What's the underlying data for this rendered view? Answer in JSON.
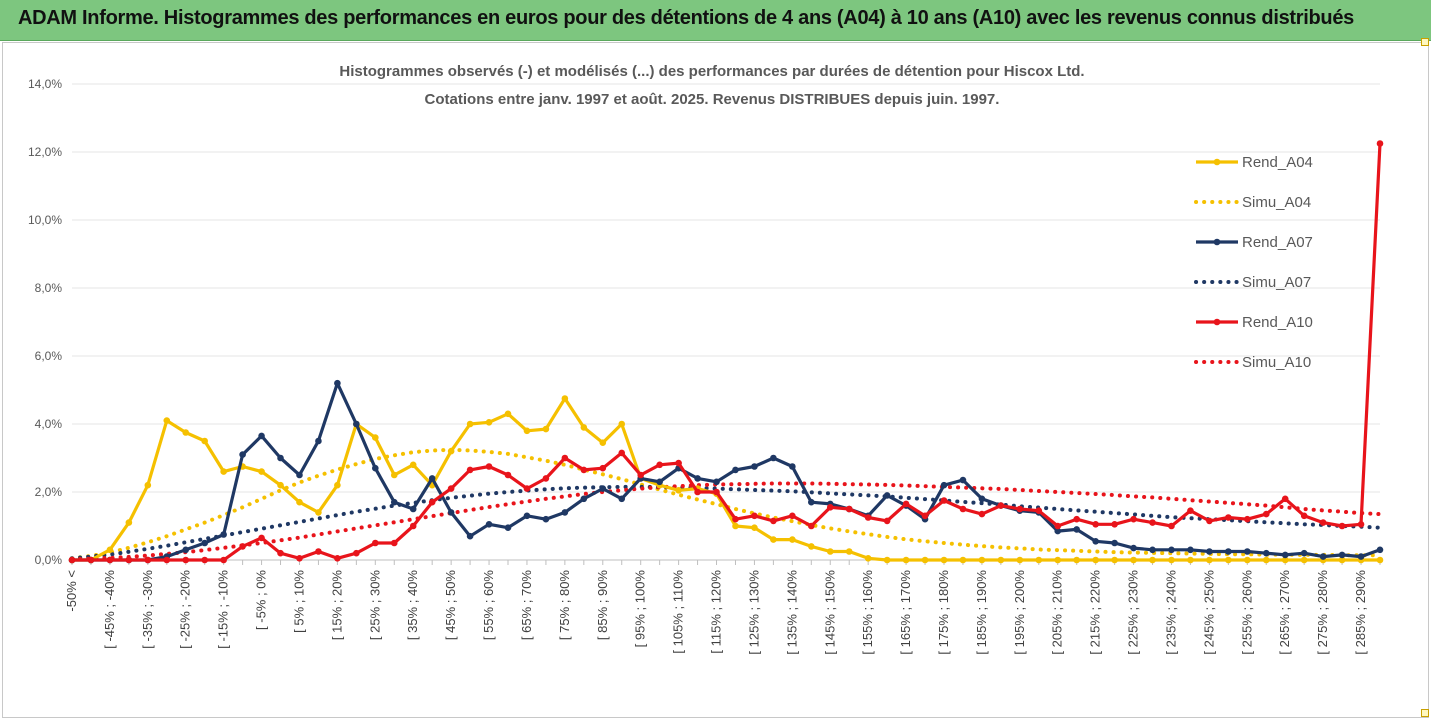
{
  "header": {
    "title": "ADAM Informe. Histogrammes des performances en euros pour des détentions de 4 ans (A04) à 10 ans (A10) avec les revenus connus distribués"
  },
  "colors": {
    "banner": "#7dc67f",
    "yellow": "#f5c000",
    "navy": "#1f3864",
    "red": "#e8141b"
  },
  "chart_data": {
    "type": "line",
    "title": "Histogrammes observés (-) et modélisés (...) des performances par durées de détention pour Hiscox Ltd.",
    "subtitle": "Cotations entre janv. 1997 et août. 2025. Revenus DISTRIBUES depuis juin. 1997.",
    "ylim": [
      0,
      14
    ],
    "yticks": [
      "0,0%",
      "2,0%",
      "4,0%",
      "6,0%",
      "8,0%",
      "10,0%",
      "12,0%",
      "14,0%"
    ],
    "legend_position": "right",
    "xticklabels": [
      "-50% <",
      "[ -45% ; -40%",
      "[ -35% ; -30%",
      "[ -25% ; -20%",
      "[ -15% ; -10%",
      "[ -5% ; 0%",
      "[ 5% ; 10%",
      "[ 15% ; 20%",
      "[ 25% ; 30%",
      "[ 35% ; 40%",
      "[ 45% ; 50%",
      "[ 55% ; 60%",
      "[ 65% ; 70%",
      "[ 75% ; 80%",
      "[ 85% ; 90%",
      "[ 95% ; 100%",
      "[ 105% ; 110%",
      "[ 115% ; 120%",
      "[ 125% ; 130%",
      "[ 135% ; 140%",
      "[ 145% ; 150%",
      "[ 155% ; 160%",
      "[ 165% ; 170%",
      "[ 175% ; 180%",
      "[ 185% ; 190%",
      "[ 195% ; 200%",
      "[ 205% ; 210%",
      "[ 215% ; 220%",
      "[ 225% ; 230%",
      "[ 235% ; 240%",
      "[ 245% ; 250%",
      "[ 255% ; 260%",
      "[ 265% ; 270%",
      "[ 275% ; 280%",
      "[ 285% ; 290%"
    ],
    "series": [
      {
        "name": "Rend_A04",
        "style": "solid-marker",
        "color": "#f5c000",
        "values": [
          0,
          0,
          0.3,
          1.1,
          2.2,
          4.1,
          3.75,
          3.5,
          2.6,
          2.75,
          2.6,
          2.2,
          1.7,
          1.4,
          2.2,
          4.0,
          3.6,
          2.5,
          2.8,
          2.2,
          3.2,
          4.0,
          4.05,
          4.3,
          3.8,
          3.85,
          4.75,
          3.9,
          3.45,
          4.0,
          2.4,
          2.2,
          2.05,
          2.1,
          1.95,
          1.0,
          0.95,
          0.6,
          0.6,
          0.4,
          0.25,
          0.25,
          0.05,
          0,
          0,
          0,
          0,
          0,
          0,
          0,
          0,
          0,
          0,
          0,
          0,
          0,
          0,
          0,
          0,
          0,
          0,
          0,
          0,
          0,
          0,
          0,
          0,
          0,
          0,
          0
        ]
      },
      {
        "name": "Simu_A04",
        "style": "dotted",
        "color": "#f5c000",
        "values": [
          0.05,
          0.12,
          0.22,
          0.36,
          0.52,
          0.7,
          0.9,
          1.1,
          1.32,
          1.55,
          1.8,
          2.05,
          2.28,
          2.48,
          2.66,
          2.82,
          2.97,
          3.08,
          3.17,
          3.22,
          3.24,
          3.22,
          3.18,
          3.12,
          3.02,
          2.92,
          2.8,
          2.66,
          2.52,
          2.38,
          2.22,
          2.07,
          1.92,
          1.78,
          1.64,
          1.5,
          1.37,
          1.25,
          1.14,
          1.03,
          0.93,
          0.84,
          0.76,
          0.68,
          0.61,
          0.55,
          0.5,
          0.45,
          0.41,
          0.37,
          0.34,
          0.31,
          0.29,
          0.27,
          0.25,
          0.23,
          0.22,
          0.21,
          0.2,
          0.19,
          0.18,
          0.17,
          0.17,
          0.16,
          0.16,
          0.15,
          0.15,
          0.14,
          0.14,
          0.14
        ]
      },
      {
        "name": "Rend_A07",
        "style": "solid-marker",
        "color": "#1f3864",
        "values": [
          0,
          0,
          0,
          0,
          0,
          0.1,
          0.3,
          0.5,
          0.75,
          3.1,
          3.65,
          3.0,
          2.5,
          3.5,
          5.2,
          4.0,
          2.7,
          1.7,
          1.5,
          2.4,
          1.4,
          0.7,
          1.05,
          0.95,
          1.3,
          1.2,
          1.4,
          1.8,
          2.1,
          1.8,
          2.4,
          2.3,
          2.7,
          2.4,
          2.3,
          2.65,
          2.75,
          3.0,
          2.75,
          1.7,
          1.65,
          1.5,
          1.3,
          1.9,
          1.6,
          1.2,
          2.2,
          2.35,
          1.8,
          1.6,
          1.45,
          1.4,
          0.85,
          0.9,
          0.55,
          0.5,
          0.35,
          0.3,
          0.3,
          0.3,
          0.25,
          0.25,
          0.25,
          0.2,
          0.15,
          0.2,
          0.1,
          0.15,
          0.1,
          0.3
        ]
      },
      {
        "name": "Simu_A07",
        "style": "dotted",
        "color": "#1f3864",
        "values": [
          0.05,
          0.1,
          0.16,
          0.24,
          0.33,
          0.42,
          0.52,
          0.62,
          0.72,
          0.82,
          0.92,
          1.02,
          1.12,
          1.22,
          1.32,
          1.42,
          1.51,
          1.6,
          1.68,
          1.76,
          1.83,
          1.89,
          1.95,
          2.0,
          2.04,
          2.08,
          2.11,
          2.13,
          2.14,
          2.15,
          2.15,
          2.14,
          2.13,
          2.12,
          2.1,
          2.08,
          2.06,
          2.04,
          2.02,
          1.99,
          1.96,
          1.93,
          1.9,
          1.87,
          1.83,
          1.79,
          1.75,
          1.71,
          1.67,
          1.63,
          1.58,
          1.54,
          1.5,
          1.46,
          1.42,
          1.38,
          1.34,
          1.3,
          1.26,
          1.23,
          1.2,
          1.17,
          1.14,
          1.11,
          1.08,
          1.05,
          1.03,
          1.0,
          0.98,
          0.95
        ]
      },
      {
        "name": "Rend_A10",
        "style": "solid-marker",
        "color": "#e8141b",
        "values": [
          0,
          0,
          0,
          0,
          0,
          0,
          0,
          0,
          0,
          0.4,
          0.65,
          0.2,
          0.05,
          0.25,
          0.05,
          0.2,
          0.5,
          0.5,
          1.0,
          1.7,
          2.1,
          2.65,
          2.75,
          2.5,
          2.1,
          2.4,
          3.0,
          2.65,
          2.7,
          3.15,
          2.5,
          2.8,
          2.85,
          2.0,
          2.0,
          1.2,
          1.3,
          1.15,
          1.3,
          1.0,
          1.55,
          1.5,
          1.25,
          1.15,
          1.65,
          1.3,
          1.75,
          1.5,
          1.35,
          1.6,
          1.5,
          1.45,
          1.0,
          1.2,
          1.05,
          1.05,
          1.2,
          1.1,
          1.0,
          1.45,
          1.15,
          1.25,
          1.2,
          1.35,
          1.8,
          1.3,
          1.1,
          1.0,
          1.05,
          12.25
        ]
      },
      {
        "name": "Simu_A10",
        "style": "dotted",
        "color": "#e8141b",
        "values": [
          0.02,
          0.04,
          0.06,
          0.09,
          0.13,
          0.18,
          0.23,
          0.29,
          0.36,
          0.43,
          0.5,
          0.58,
          0.66,
          0.75,
          0.84,
          0.93,
          1.02,
          1.11,
          1.2,
          1.29,
          1.38,
          1.47,
          1.56,
          1.64,
          1.72,
          1.8,
          1.87,
          1.94,
          2.0,
          2.05,
          2.1,
          2.14,
          2.17,
          2.2,
          2.22,
          2.23,
          2.24,
          2.25,
          2.25,
          2.25,
          2.24,
          2.23,
          2.22,
          2.21,
          2.19,
          2.17,
          2.15,
          2.13,
          2.11,
          2.09,
          2.06,
          2.03,
          2.0,
          1.97,
          1.94,
          1.91,
          1.87,
          1.84,
          1.8,
          1.76,
          1.72,
          1.68,
          1.64,
          1.6,
          1.55,
          1.5,
          1.46,
          1.42,
          1.38,
          1.35
        ]
      }
    ]
  }
}
